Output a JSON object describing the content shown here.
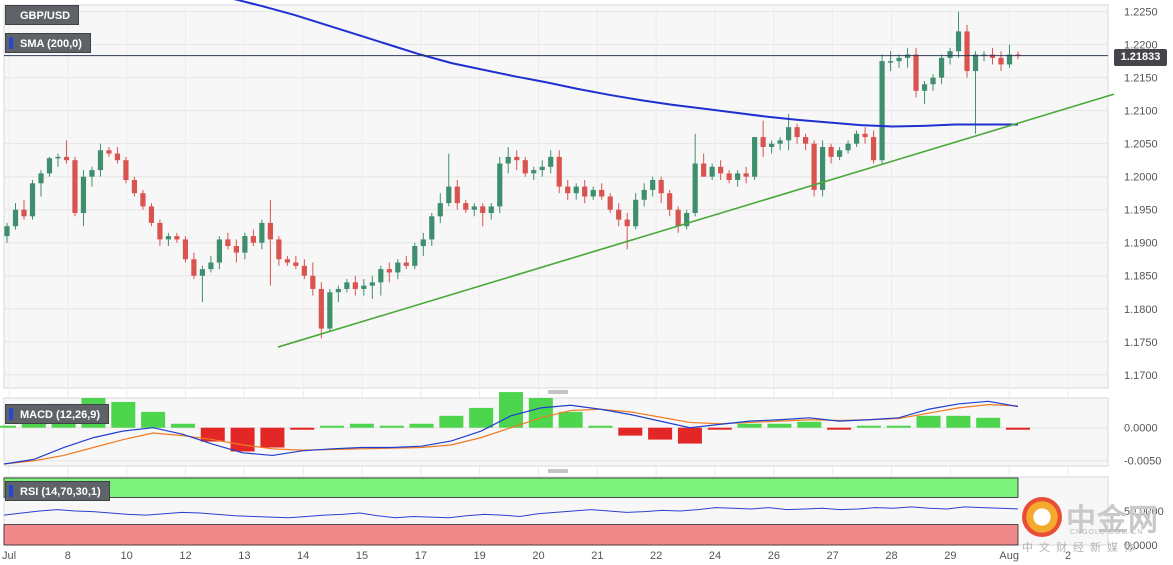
{
  "chart_data": {
    "type": "candlestick",
    "symbol": "GBP/USD",
    "last_price": "1.21833",
    "colors": {
      "up": "#3f8f6e",
      "down": "#d9534f",
      "sma": "#1f2fd0",
      "trendline": "#4aa83a",
      "macd_line": "#1f3fd0",
      "signal_line": "#f07a20",
      "hist_up": "#3ad03a",
      "hist_down": "#e01010",
      "rsi_line": "#2a40d0",
      "rsi_upper_zone": "#7cf27c",
      "rsi_lower_zone": "#f08a8a"
    },
    "main": {
      "ylim": [
        1.168,
        1.226
      ],
      "y_ticks": [
        "1.2250",
        "1.2200",
        "1.2150",
        "1.2100",
        "1.2050",
        "1.2000",
        "1.1950",
        "1.1900",
        "1.1850",
        "1.1800",
        "1.1750",
        "1.1700"
      ],
      "x_ticks": [
        "Jul",
        "8",
        "10",
        "12",
        "13",
        "14",
        "15",
        "17",
        "19",
        "20",
        "21",
        "22",
        "24",
        "26",
        "27",
        "28",
        "29",
        "Aug",
        "2"
      ],
      "candles": [
        [
          1.191,
          1.193,
          1.19,
          1.1925
        ],
        [
          1.1925,
          1.196,
          1.192,
          1.195
        ],
        [
          1.195,
          1.1965,
          1.1935,
          1.194
        ],
        [
          1.194,
          1.1995,
          1.1935,
          1.199
        ],
        [
          1.199,
          1.201,
          1.197,
          1.2005
        ],
        [
          1.2005,
          1.203,
          1.2,
          1.2028
        ],
        [
          1.2028,
          1.2035,
          1.2015,
          1.203
        ],
        [
          1.203,
          1.2055,
          1.202,
          1.2025
        ],
        [
          1.2025,
          1.203,
          1.194,
          1.1945
        ],
        [
          1.1945,
          1.201,
          1.1925,
          1.2
        ],
        [
          1.2,
          1.2015,
          1.1985,
          1.201
        ],
        [
          1.201,
          1.205,
          1.2,
          1.204
        ],
        [
          1.204,
          1.2045,
          1.203,
          1.2035
        ],
        [
          1.2035,
          1.2045,
          1.202,
          1.2025
        ],
        [
          1.2025,
          1.203,
          1.199,
          1.1995
        ],
        [
          1.1995,
          1.2,
          1.197,
          1.1975
        ],
        [
          1.1975,
          1.198,
          1.195,
          1.1955
        ],
        [
          1.1955,
          1.196,
          1.1925,
          1.193
        ],
        [
          1.193,
          1.1935,
          1.1895,
          1.1905
        ],
        [
          1.1905,
          1.1915,
          1.1895,
          1.191
        ],
        [
          1.191,
          1.1915,
          1.19,
          1.1905
        ],
        [
          1.1905,
          1.191,
          1.187,
          1.1875
        ],
        [
          1.1875,
          1.1885,
          1.1845,
          1.185
        ],
        [
          1.185,
          1.1865,
          1.181,
          1.186
        ],
        [
          1.186,
          1.188,
          1.1855,
          1.187
        ],
        [
          1.187,
          1.191,
          1.186,
          1.1905
        ],
        [
          1.1905,
          1.1915,
          1.189,
          1.1895
        ],
        [
          1.1895,
          1.1905,
          1.187,
          1.1885
        ],
        [
          1.1885,
          1.1915,
          1.1875,
          1.191
        ],
        [
          1.191,
          1.192,
          1.1895,
          1.19
        ],
        [
          1.19,
          1.1935,
          1.189,
          1.193
        ],
        [
          1.193,
          1.1965,
          1.1835,
          1.1905
        ],
        [
          1.1905,
          1.191,
          1.1865,
          1.1875
        ],
        [
          1.1875,
          1.188,
          1.1865,
          1.187
        ],
        [
          1.187,
          1.188,
          1.186,
          1.1865
        ],
        [
          1.1865,
          1.1875,
          1.1845,
          1.185
        ],
        [
          1.185,
          1.187,
          1.182,
          1.183
        ],
        [
          1.183,
          1.184,
          1.1755,
          1.177
        ],
        [
          1.177,
          1.183,
          1.1765,
          1.1825
        ],
        [
          1.1825,
          1.1835,
          1.181,
          1.183
        ],
        [
          1.183,
          1.1845,
          1.1825,
          1.184
        ],
        [
          1.184,
          1.185,
          1.182,
          1.183
        ],
        [
          1.183,
          1.1845,
          1.182,
          1.1835
        ],
        [
          1.1835,
          1.185,
          1.1815,
          1.184
        ],
        [
          1.184,
          1.1865,
          1.182,
          1.186
        ],
        [
          1.186,
          1.187,
          1.184,
          1.1855
        ],
        [
          1.1855,
          1.1875,
          1.1845,
          1.187
        ],
        [
          1.187,
          1.188,
          1.186,
          1.1865
        ],
        [
          1.1865,
          1.19,
          1.186,
          1.1895
        ],
        [
          1.1895,
          1.1915,
          1.188,
          1.1905
        ],
        [
          1.1905,
          1.1945,
          1.1895,
          1.194
        ],
        [
          1.194,
          1.1975,
          1.193,
          1.196
        ],
        [
          1.196,
          1.2035,
          1.1955,
          1.1985
        ],
        [
          1.1985,
          1.1995,
          1.195,
          1.196
        ],
        [
          1.196,
          1.1965,
          1.1945,
          1.195
        ],
        [
          1.195,
          1.196,
          1.194,
          1.1955
        ],
        [
          1.1955,
          1.196,
          1.1925,
          1.1945
        ],
        [
          1.1945,
          1.196,
          1.1935,
          1.1955
        ],
        [
          1.1955,
          1.203,
          1.1945,
          1.202
        ],
        [
          1.202,
          1.2045,
          1.2005,
          1.203
        ],
        [
          1.203,
          1.204,
          1.201,
          1.2025
        ],
        [
          1.2025,
          1.203,
          1.2,
          1.2005
        ],
        [
          1.2005,
          1.2015,
          1.1995,
          1.201
        ],
        [
          1.201,
          1.2025,
          1.2,
          1.2015
        ],
        [
          1.2015,
          1.204,
          1.2005,
          1.203
        ],
        [
          1.203,
          1.204,
          1.1975,
          1.1985
        ],
        [
          1.1985,
          1.1995,
          1.1965,
          1.1975
        ],
        [
          1.1975,
          1.199,
          1.1965,
          1.1985
        ],
        [
          1.1985,
          1.1995,
          1.196,
          1.197
        ],
        [
          1.197,
          1.1985,
          1.1965,
          1.198
        ],
        [
          1.198,
          1.199,
          1.1965,
          1.197
        ],
        [
          1.197,
          1.1975,
          1.1945,
          1.195
        ],
        [
          1.195,
          1.196,
          1.1925,
          1.1935
        ],
        [
          1.1935,
          1.1945,
          1.189,
          1.1925
        ],
        [
          1.1925,
          1.1975,
          1.192,
          1.1965
        ],
        [
          1.1965,
          1.199,
          1.1955,
          1.198
        ],
        [
          1.198,
          1.2,
          1.197,
          1.1995
        ],
        [
          1.1995,
          1.2,
          1.196,
          1.1975
        ],
        [
          1.1975,
          1.198,
          1.194,
          1.195
        ],
        [
          1.195,
          1.1955,
          1.1915,
          1.1925
        ],
        [
          1.1925,
          1.195,
          1.192,
          1.1945
        ],
        [
          1.1945,
          1.2065,
          1.194,
          1.202
        ],
        [
          1.202,
          1.2035,
          1.2,
          1.2
        ],
        [
          1.2,
          1.202,
          1.1995,
          1.2015
        ],
        [
          1.2015,
          1.2025,
          1.1995,
          1.2005
        ],
        [
          1.2005,
          1.201,
          1.199,
          1.1995
        ],
        [
          1.1995,
          1.201,
          1.1985,
          1.2005
        ],
        [
          1.2005,
          1.2015,
          1.199,
          1.2
        ],
        [
          1.2,
          1.206,
          1.1995,
          1.206
        ],
        [
          1.206,
          1.2085,
          1.203,
          1.2045
        ],
        [
          1.2045,
          1.2055,
          1.2035,
          1.205
        ],
        [
          1.205,
          1.206,
          1.204,
          1.2055
        ],
        [
          1.2055,
          1.2095,
          1.204,
          1.2075
        ],
        [
          1.2075,
          1.208,
          1.205,
          1.206
        ],
        [
          1.206,
          1.2065,
          1.204,
          1.205
        ],
        [
          1.205,
          1.2055,
          1.197,
          1.198
        ],
        [
          1.198,
          1.2055,
          1.197,
          1.2045
        ],
        [
          1.2045,
          1.205,
          1.202,
          1.203
        ],
        [
          1.203,
          1.2045,
          1.2025,
          1.204
        ],
        [
          1.204,
          1.2055,
          1.2035,
          1.205
        ],
        [
          1.205,
          1.207,
          1.2045,
          1.2065
        ],
        [
          1.2065,
          1.2075,
          1.205,
          1.206
        ],
        [
          1.206,
          1.207,
          1.202,
          1.2025
        ],
        [
          1.2025,
          1.2185,
          1.202,
          1.2175
        ],
        [
          1.2175,
          1.219,
          1.216,
          1.2175
        ],
        [
          1.2175,
          1.2185,
          1.2165,
          1.218
        ],
        [
          1.218,
          1.2195,
          1.2165,
          1.2185
        ],
        [
          1.2185,
          1.2195,
          1.212,
          1.213
        ],
        [
          1.213,
          1.2145,
          1.211,
          1.214
        ],
        [
          1.214,
          1.2155,
          1.213,
          1.215
        ],
        [
          1.215,
          1.2185,
          1.214,
          1.218
        ],
        [
          1.218,
          1.2195,
          1.217,
          1.219
        ],
        [
          1.219,
          1.225,
          1.218,
          1.222
        ],
        [
          1.222,
          1.223,
          1.215,
          1.216
        ],
        [
          1.216,
          1.219,
          1.2065,
          1.2185
        ],
        [
          1.2185,
          1.219,
          1.2175,
          1.2185
        ],
        [
          1.2185,
          1.2195,
          1.217,
          1.218
        ],
        [
          1.218,
          1.219,
          1.216,
          1.217
        ],
        [
          1.217,
          1.22,
          1.2165,
          1.2185
        ],
        [
          1.2185,
          1.219,
          1.2178,
          1.2183
        ]
      ],
      "sma": [
        1.228,
        1.227,
        1.2258,
        1.2245,
        1.223,
        1.2215,
        1.22,
        1.2185,
        1.2172,
        1.2162,
        1.2152,
        1.2143,
        1.2133,
        1.2124,
        1.2116,
        1.2109,
        1.2103,
        1.2097,
        1.2091,
        1.2086,
        1.2082,
        1.2078,
        1.2076,
        1.2077,
        1.2079,
        1.2079,
        1.2079
      ],
      "trendline": [
        [
          1.1742,
          1.2125
        ]
      ]
    },
    "macd": {
      "ylim": [
        -0.0058,
        0.0045
      ],
      "y_ticks": [
        "0.0000",
        "-0.0050"
      ],
      "macd_line": [
        -0.0055,
        -0.0048,
        -0.003,
        -0.0015,
        -0.0005,
        0.0,
        -0.001,
        -0.0025,
        -0.0038,
        -0.0042,
        -0.0035,
        -0.0032,
        -0.003,
        -0.003,
        -0.0028,
        -0.002,
        -0.0005,
        0.0018,
        0.003,
        0.0034,
        0.0028,
        0.002,
        0.001,
        0.0,
        0.0005,
        0.001,
        0.0012,
        0.0015,
        0.001,
        0.0012,
        0.0015,
        0.0028,
        0.0036,
        0.004,
        0.0032
      ],
      "signal_line": [
        -0.0055,
        -0.005,
        -0.0042,
        -0.003,
        -0.0018,
        -0.0008,
        -0.0012,
        -0.0018,
        -0.0026,
        -0.0032,
        -0.0034,
        -0.0033,
        -0.0032,
        -0.0031,
        -0.003,
        -0.0026,
        -0.0015,
        0.0,
        0.0015,
        0.0026,
        0.0028,
        0.0024,
        0.0016,
        0.0008,
        0.0006,
        0.0008,
        0.001,
        0.0012,
        0.0011,
        0.0012,
        0.0014,
        0.0022,
        0.003,
        0.0035,
        0.0033
      ]
    },
    "rsi": {
      "y_ticks": [
        "50.0000",
        "0.0000"
      ],
      "values": [
        44,
        47,
        50,
        52,
        50,
        49,
        47,
        45,
        44,
        46,
        48,
        47,
        45,
        43,
        42,
        41,
        40,
        42,
        44,
        45,
        47,
        43,
        40,
        42,
        41,
        40,
        43,
        45,
        44,
        42,
        46,
        48,
        50,
        52,
        50,
        48,
        49,
        51,
        50,
        52,
        55,
        54,
        53,
        55,
        52,
        53,
        54,
        52,
        53,
        55,
        54,
        56,
        54,
        53,
        56,
        55,
        54,
        53
      ]
    },
    "x_scale_note": "one candle per slot"
  },
  "labels": {
    "symbol_tag": "GBP/USD",
    "sma_tag": "SMA (200,0)",
    "macd_tag": "MACD (12,26,9)",
    "rsi_tag": "RSI (14,70,30,1)",
    "price_tag": "1.21833"
  },
  "watermark": {
    "name": "中金网",
    "domain": "CNGOLD.COM.CN",
    "sub": "中文财经新媒体"
  }
}
